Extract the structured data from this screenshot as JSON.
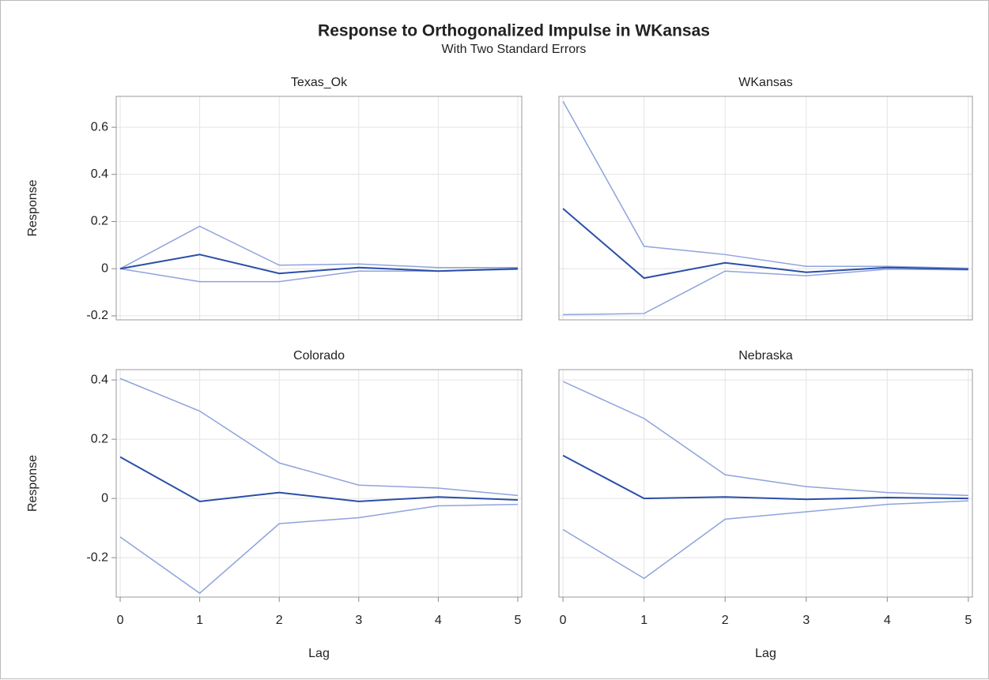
{
  "title": "Response to Orthogonalized Impulse in WKansas",
  "subtitle": "With Two Standard Errors",
  "chart_data": [
    {
      "type": "line",
      "title": "Texas_Ok",
      "ylabel": "Response",
      "x": [
        0,
        1,
        2,
        3,
        4,
        5
      ],
      "xlim": [
        -0.05,
        5.05
      ],
      "ylim": [
        -0.217,
        0.731
      ],
      "yticks": [
        -0.2,
        0.0,
        0.2,
        0.4,
        0.6
      ],
      "grid": true,
      "series": [
        {
          "color": "#8fa3dc",
          "values": [
            0,
            0.18,
            0.015,
            0.02,
            0.005,
            0.005
          ]
        },
        {
          "color": "#8fa3dc",
          "values": [
            0,
            -0.055,
            -0.055,
            -0.01,
            -0.01,
            -0.003
          ]
        },
        {
          "color": "#2a4fa8",
          "values": [
            0,
            0.06,
            -0.02,
            0.005,
            -0.01,
            0.0
          ]
        }
      ]
    },
    {
      "type": "line",
      "title": "WKansas",
      "x": [
        0,
        1,
        2,
        3,
        4,
        5
      ],
      "xlim": [
        -0.05,
        5.05
      ],
      "ylim": [
        -0.217,
        0.731
      ],
      "grid": true,
      "series": [
        {
          "color": "#8fa3dc",
          "values": [
            0.71,
            0.095,
            0.06,
            0.01,
            0.01,
            0.002
          ]
        },
        {
          "color": "#8fa3dc",
          "values": [
            -0.195,
            -0.19,
            -0.01,
            -0.03,
            -0.002,
            -0.005
          ]
        },
        {
          "color": "#2a4fa8",
          "values": [
            0.255,
            -0.04,
            0.025,
            -0.015,
            0.005,
            -0.002
          ]
        }
      ]
    },
    {
      "type": "line",
      "title": "Colorado",
      "ylabel": "Response",
      "xlabel": "Lag",
      "x": [
        0,
        1,
        2,
        3,
        4,
        5
      ],
      "xlim": [
        -0.05,
        5.05
      ],
      "ylim": [
        -0.333,
        0.435
      ],
      "xticks": [
        0,
        1,
        2,
        3,
        4,
        5
      ],
      "yticks": [
        -0.2,
        0.0,
        0.2,
        0.4
      ],
      "grid": true,
      "series": [
        {
          "color": "#8fa3dc",
          "values": [
            0.405,
            0.295,
            0.12,
            0.045,
            0.035,
            0.01
          ]
        },
        {
          "color": "#8fa3dc",
          "values": [
            -0.13,
            -0.32,
            -0.085,
            -0.065,
            -0.025,
            -0.02
          ]
        },
        {
          "color": "#2a4fa8",
          "values": [
            0.14,
            -0.01,
            0.02,
            -0.01,
            0.005,
            -0.005
          ]
        }
      ]
    },
    {
      "type": "line",
      "title": "Nebraska",
      "xlabel": "Lag",
      "x": [
        0,
        1,
        2,
        3,
        4,
        5
      ],
      "xlim": [
        -0.05,
        5.05
      ],
      "ylim": [
        -0.333,
        0.435
      ],
      "xticks": [
        0,
        1,
        2,
        3,
        4,
        5
      ],
      "grid": true,
      "series": [
        {
          "color": "#8fa3dc",
          "values": [
            0.395,
            0.27,
            0.08,
            0.04,
            0.02,
            0.01
          ]
        },
        {
          "color": "#8fa3dc",
          "values": [
            -0.105,
            -0.27,
            -0.07,
            -0.045,
            -0.02,
            -0.008
          ]
        },
        {
          "color": "#2a4fa8",
          "values": [
            0.145,
            0.0,
            0.005,
            -0.003,
            0.003,
            0.0
          ]
        }
      ]
    }
  ]
}
